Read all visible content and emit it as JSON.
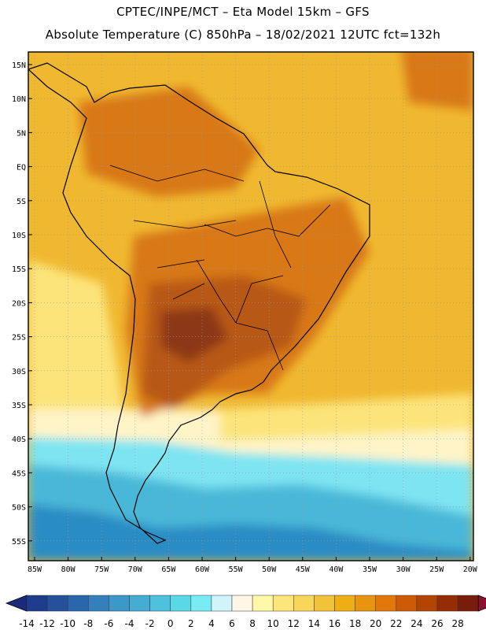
{
  "title_line1": "CPTEC/INPE/MCT –  Eta Model 15km – GFS",
  "title_line2": "Absolute Temperature (C) 850hPa – 18/02/2021 12UTC fct=132h",
  "lat_ticks": [
    "15N",
    "10N",
    "5N",
    "EQ",
    "5S",
    "10S",
    "15S",
    "20S",
    "25S",
    "30S",
    "35S",
    "40S",
    "45S",
    "50S",
    "55S"
  ],
  "lon_ticks": [
    "85W",
    "80W",
    "75W",
    "70W",
    "65W",
    "60W",
    "55W",
    "50W",
    "45W",
    "40W",
    "35W",
    "30W",
    "25W",
    "20W"
  ],
  "colorbar": {
    "labels": [
      "-14",
      "-12",
      "-10",
      "-8",
      "-6",
      "-4",
      "-2",
      "0",
      "2",
      "4",
      "6",
      "8",
      "10",
      "12",
      "14",
      "16",
      "18",
      "20",
      "22",
      "24",
      "26",
      "28"
    ],
    "colors": [
      "#1e3c8c",
      "#24509c",
      "#2a66ac",
      "#3480bc",
      "#3c98c8",
      "#46acd2",
      "#4ec2dc",
      "#5ad8e6",
      "#78ecf2",
      "#cff4fa",
      "#fff6e6",
      "#fff8a8",
      "#fce67a",
      "#f8d65a",
      "#f2c23a",
      "#eeae14",
      "#e89410",
      "#e2780a",
      "#cc5a06",
      "#b24404",
      "#942c04",
      "#781c0c"
    ],
    "under_color": "#1a2a78",
    "over_color": "#8c1030"
  },
  "map": {
    "region": "South America",
    "lat_range": [
      -58,
      17
    ],
    "lon_range": [
      -86,
      -20
    ],
    "colors": {
      "frame": "#000000",
      "coast": "#000000",
      "grid": "#9a9a9a",
      "warm_bg": "#f0b830",
      "hot": "#d87818",
      "hotter": "#b85818",
      "hottest": "#8c3818",
      "mild": "#fce47a",
      "pale": "#fff4c8",
      "cool": "#7ee4f2",
      "cold": "#4ab8d8",
      "colder": "#2c8cc4"
    }
  }
}
